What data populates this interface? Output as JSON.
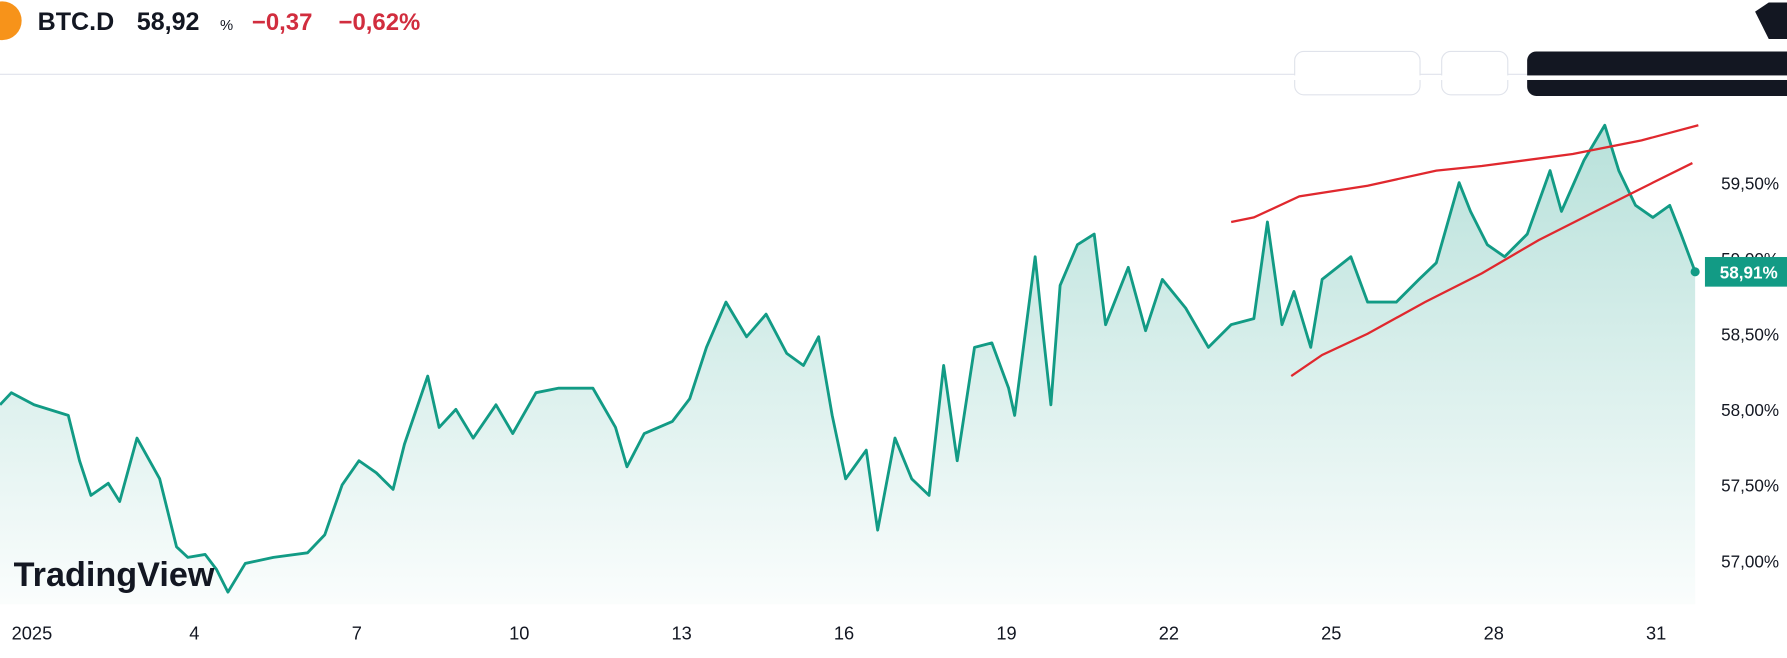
{
  "header": {
    "symbol": "BTC.D",
    "price": "58,92",
    "price_unit": "%",
    "change": "−0,37",
    "change_percent": "−0,62%"
  },
  "watermark": "TradingView",
  "chart_data": {
    "type": "area",
    "color": "#129b85",
    "x": [
      0.41,
      0.62,
      1.04,
      1.67,
      1.88,
      2.09,
      2.41,
      2.62,
      2.94,
      3.36,
      3.67,
      3.88,
      4.2,
      4.41,
      4.62,
      4.94,
      5.46,
      6.09,
      6.41,
      6.73,
      7.04,
      7.36,
      7.67,
      7.88,
      8.31,
      8.52,
      8.83,
      9.15,
      9.57,
      9.88,
      10.31,
      10.73,
      11.36,
      11.78,
      11.99,
      12.31,
      12.83,
      13.15,
      13.46,
      13.82,
      14.2,
      14.56,
      14.94,
      15.25,
      15.53,
      15.78,
      16.03,
      16.41,
      16.62,
      16.94,
      17.25,
      17.57,
      17.84,
      18.09,
      18.41,
      18.73,
      19.04,
      19.15,
      19.53,
      19.67,
      19.82,
      19.99,
      20.31,
      20.62,
      20.83,
      21.25,
      21.57,
      21.88,
      22.31,
      22.73,
      23.15,
      23.57,
      23.82,
      24.09,
      24.31,
      24.62,
      24.83,
      25.36,
      25.67,
      26.2,
      26.62,
      26.94,
      27.36,
      27.57,
      27.88,
      28.2,
      28.62,
      29.04,
      29.25,
      29.67,
      30.05,
      30.31,
      30.62,
      30.94,
      31.25,
      31.46,
      31.72
    ],
    "values": [
      58.03,
      58.11,
      58.03,
      57.96,
      57.66,
      57.43,
      57.51,
      57.39,
      57.81,
      57.54,
      57.09,
      57.02,
      57.04,
      56.94,
      56.79,
      56.98,
      57.02,
      57.05,
      57.17,
      57.5,
      57.66,
      57.58,
      57.47,
      57.77,
      58.22,
      57.88,
      58.0,
      57.81,
      58.03,
      57.84,
      58.11,
      58.14,
      58.14,
      57.88,
      57.62,
      57.84,
      57.92,
      58.07,
      58.41,
      58.71,
      58.48,
      58.63,
      58.37,
      58.29,
      58.48,
      57.96,
      57.54,
      57.73,
      57.2,
      57.81,
      57.54,
      57.43,
      58.29,
      57.66,
      58.41,
      58.44,
      58.14,
      57.96,
      59.01,
      58.52,
      58.03,
      58.82,
      59.09,
      59.16,
      58.56,
      58.94,
      58.52,
      58.86,
      58.67,
      58.41,
      58.56,
      58.6,
      59.24,
      58.56,
      58.78,
      58.41,
      58.86,
      59.01,
      58.71,
      58.71,
      58.86,
      58.97,
      59.5,
      59.31,
      59.09,
      59.01,
      59.16,
      59.58,
      59.31,
      59.65,
      59.88,
      59.58,
      59.35,
      59.27,
      59.35,
      59.16,
      58.91
    ],
    "xlim": [
      0.41,
      31.88
    ],
    "xticks": [
      {
        "value": 1,
        "label": "2025"
      },
      4,
      7,
      10,
      13,
      16,
      19,
      22,
      25,
      28,
      31
    ],
    "ylim": [
      56.71,
      60.21
    ],
    "yticks": [
      {
        "value": 57,
        "label": "57,00%"
      },
      {
        "value": 57.5,
        "label": "57,50%"
      },
      {
        "value": 58,
        "label": "58,00%"
      },
      {
        "value": 58.5,
        "label": "58,50%"
      },
      {
        "value": 59,
        "label": "59,00%"
      },
      {
        "value": 59.5,
        "label": "59,50%"
      }
    ],
    "price_label": {
      "value": 58.91,
      "label": "58,91%"
    },
    "drawings": [
      {
        "color": "#e0282e",
        "x": [
          23.15,
          23.57,
          24.41,
          25.67,
          26.94,
          27.78,
          29.46,
          30.73,
          31.78
        ],
        "values": [
          59.24,
          59.27,
          59.41,
          59.48,
          59.58,
          59.61,
          59.69,
          59.78,
          59.88
        ]
      },
      {
        "color": "#e0282e",
        "x": [
          24.26,
          24.83,
          25.67,
          26.73,
          27.78,
          28.83,
          29.88,
          30.94,
          31.67
        ],
        "values": [
          58.22,
          58.36,
          58.5,
          58.71,
          58.9,
          59.12,
          59.31,
          59.5,
          59.63
        ]
      }
    ]
  }
}
